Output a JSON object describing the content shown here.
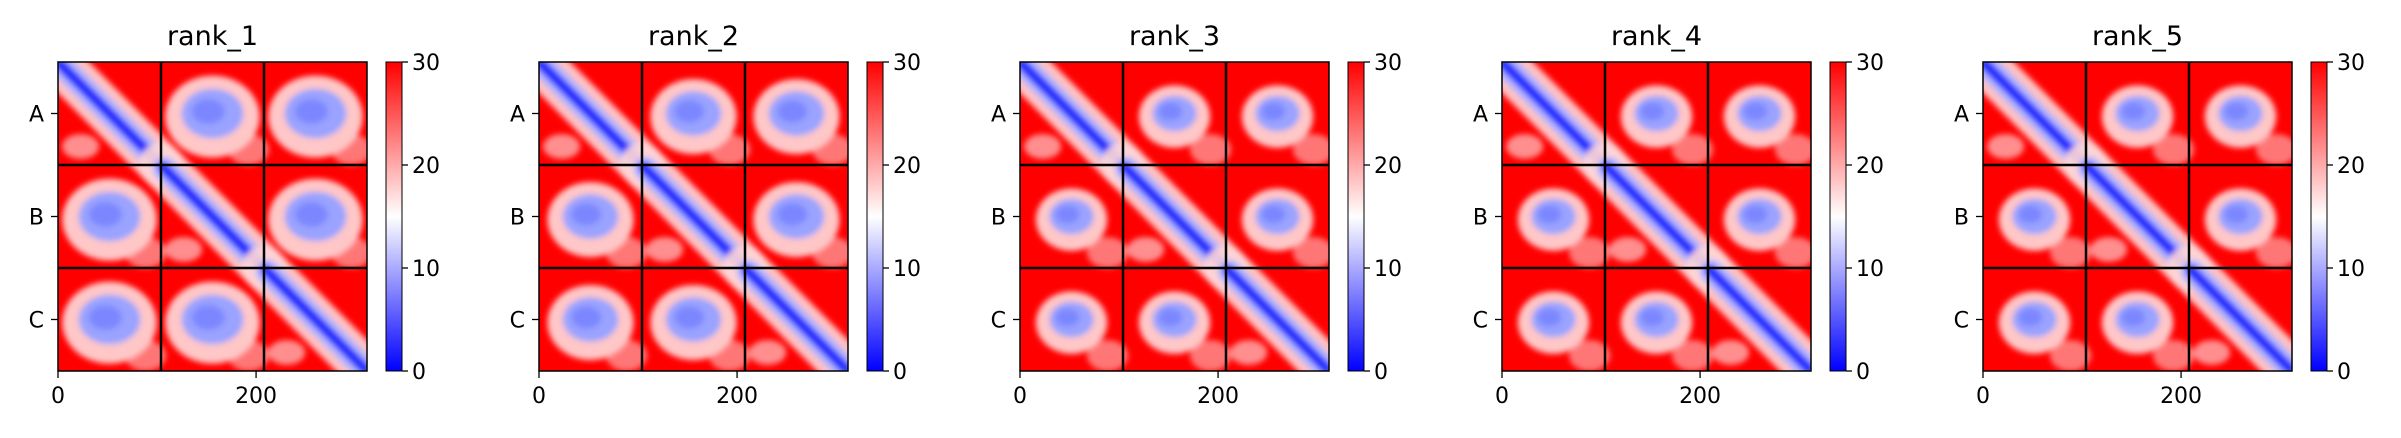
{
  "chart_data": {
    "type": "heatmap",
    "colormap": {
      "low": "#0000ff",
      "mid": "#ffffff",
      "high": "#ff0000"
    },
    "colorbar": {
      "min": 0,
      "max": 30,
      "ticks": [
        0,
        10,
        20,
        30
      ]
    },
    "x_ticks": [
      0,
      200
    ],
    "x_range": [
      0,
      312
    ],
    "chain_labels": [
      "A",
      "B",
      "C"
    ],
    "chain_boundaries": [
      104,
      208
    ],
    "grid_line_color": "#000000",
    "panels": [
      {
        "title": "rank_1"
      },
      {
        "title": "rank_2"
      },
      {
        "title": "rank_3"
      },
      {
        "title": "rank_4"
      },
      {
        "title": "rank_5"
      }
    ]
  }
}
